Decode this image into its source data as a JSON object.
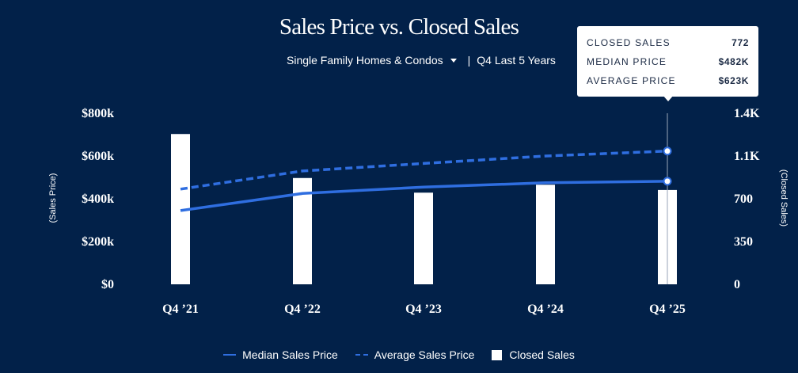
{
  "header": {
    "title": "Sales Price vs. Closed Sales",
    "filter_label": "Single Family Homes & Condos",
    "separator": "|",
    "period_label": "Q4 Last 5 Years"
  },
  "tooltip": {
    "rows": [
      {
        "label": "CLOSED SALES",
        "value": "772"
      },
      {
        "label": "MEDIAN PRICE",
        "value": "$482K"
      },
      {
        "label": "AVERAGE PRICE",
        "value": "$623K"
      }
    ]
  },
  "legend": {
    "median": "Median Sales Price",
    "average": "Average Sales Price",
    "closed": "Closed Sales"
  },
  "colors": {
    "background": "#022149",
    "line": "#2f6ee0",
    "bar": "#ffffff"
  },
  "chart_data": {
    "type": "bar",
    "title": "Sales Price vs. Closed Sales",
    "categories": [
      "Q4 ’21",
      "Q4 ’22",
      "Q4 ’23",
      "Q4 ’24",
      "Q4 ’25"
    ],
    "ylabel": "(Sales Price)",
    "y2label": "(Closed Sales)",
    "ylim": [
      0,
      800000
    ],
    "y2lim": [
      0,
      1400
    ],
    "y_ticks": [
      "$0",
      "$200k",
      "$400k",
      "$600k",
      "$800k"
    ],
    "y2_ticks": [
      "0",
      "350",
      "700",
      "1.1K",
      "1.4K"
    ],
    "grid": false,
    "legend_position": "bottom",
    "series": [
      {
        "name": "Closed Sales",
        "type": "bar",
        "axis": "right",
        "values": [
          1230,
          870,
          750,
          815,
          772
        ]
      },
      {
        "name": "Median Sales Price",
        "type": "line",
        "axis": "left",
        "values": [
          345000,
          425000,
          455000,
          475000,
          482000
        ]
      },
      {
        "name": "Average Sales Price",
        "type": "line",
        "style": "dashed",
        "axis": "left",
        "values": [
          445000,
          530000,
          565000,
          600000,
          623000
        ]
      }
    ]
  }
}
